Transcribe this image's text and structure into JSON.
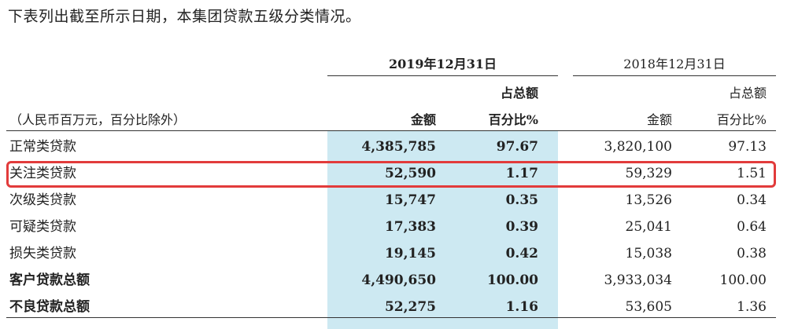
{
  "intro": "下表列出截至所示日期，本集团贷款五级分类情况。",
  "header": {
    "period_2019": "2019年12月31日",
    "period_2018": "2018年12月31日",
    "unit_note": "（人民币百万元，百分比除外）",
    "share_line1_2019": "占总额",
    "share_line1_2018": "占总额",
    "amount_2019": "金额",
    "pct_2019": "百分比%",
    "amount_2018": "金额",
    "pct_2018": "百分比%"
  },
  "rows": [
    {
      "label": "正常类贷款",
      "amt2019": "4,385,785",
      "pct2019": "97.67",
      "amt2018": "3,820,100",
      "pct2018": "97.13"
    },
    {
      "label": "关注类贷款",
      "amt2019": "52,590",
      "pct2019": "1.17",
      "amt2018": "59,329",
      "pct2018": "1.51"
    },
    {
      "label": "次级类贷款",
      "amt2019": "15,747",
      "pct2019": "0.35",
      "amt2018": "13,526",
      "pct2018": "0.34"
    },
    {
      "label": "可疑类贷款",
      "amt2019": "17,383",
      "pct2019": "0.39",
      "amt2018": "25,041",
      "pct2018": "0.64"
    },
    {
      "label": "损失类贷款",
      "amt2019": "19,145",
      "pct2019": "0.42",
      "amt2018": "15,038",
      "pct2018": "0.38"
    },
    {
      "label": "客户贷款总额",
      "amt2019": "4,490,650",
      "pct2019": "100.00",
      "amt2018": "3,933,034",
      "pct2018": "100.00"
    },
    {
      "label": "不良贷款总额",
      "amt2019": "52,275",
      "pct2019": "1.16",
      "amt2018": "53,605",
      "pct2018": "1.36"
    }
  ],
  "colors": {
    "shade": "#cde9f2",
    "highlight": "#e23b3b"
  }
}
